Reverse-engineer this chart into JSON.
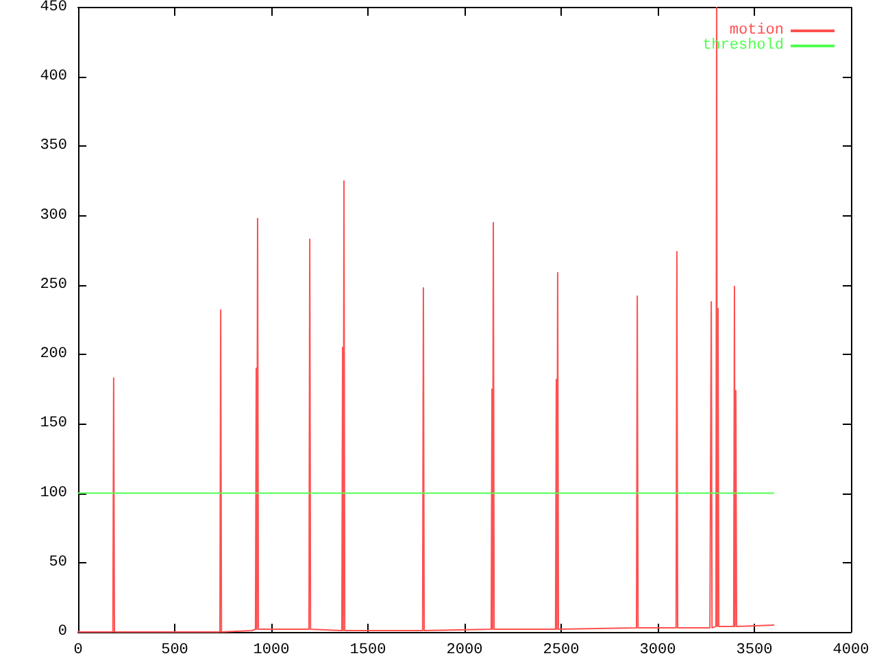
{
  "chart_data": {
    "type": "line",
    "legend": "top right",
    "grid": false,
    "marker": "none",
    "line_style": "solid",
    "xlim": [
      0,
      4000
    ],
    "xticks": [
      0,
      500,
      1000,
      1500,
      2000,
      2500,
      3000,
      3500,
      4000
    ],
    "ylim": [
      0,
      450
    ],
    "yticks": [
      0,
      50,
      100,
      150,
      200,
      250,
      300,
      350,
      400,
      450
    ],
    "series": [
      {
        "name": "motion",
        "color": "#ff5050",
        "x": [
          0,
          180,
          184,
          188,
          734,
          738,
          742,
          900,
          918,
          922,
          925,
          929,
          933,
          1195,
          1199,
          1203,
          1365,
          1369,
          1372,
          1376,
          1380,
          1783,
          1787,
          1791,
          2138,
          2142,
          2145,
          2149,
          2153,
          2471,
          2475,
          2478,
          2482,
          2486,
          2890,
          2894,
          2898,
          3095,
          3099,
          3103,
          3270,
          3277,
          3281,
          3301,
          3305,
          3308,
          3312,
          3316,
          3393,
          3397,
          3400,
          3404,
          3408,
          3600
        ],
        "values": [
          0,
          0,
          183,
          0,
          0,
          232,
          0,
          1,
          2,
          190,
          2,
          298,
          2,
          2,
          283,
          2,
          1,
          205,
          1,
          325,
          1,
          1,
          248,
          1,
          2,
          175,
          2,
          295,
          2,
          2,
          182,
          2,
          259,
          2,
          3,
          242,
          3,
          3,
          274,
          3,
          3,
          238,
          3,
          4,
          450,
          4,
          233,
          4,
          4,
          249,
          4,
          174,
          4,
          5
        ]
      },
      {
        "name": "threshold",
        "color": "#50ff50",
        "x": [
          0,
          3600
        ],
        "values": [
          100,
          100
        ]
      }
    ]
  }
}
